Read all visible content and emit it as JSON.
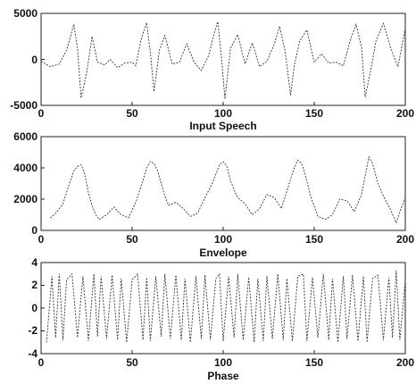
{
  "chart_data": [
    {
      "type": "line",
      "xlabel": "Input Speech",
      "ylabel": "",
      "xlim": [
        0,
        200
      ],
      "ylim": [
        -5000,
        5000
      ],
      "xticks": [
        "0",
        "50",
        "100",
        "150",
        "200"
      ],
      "yticks": [
        "-5000",
        "0",
        "5000"
      ],
      "grid": false,
      "series": [
        {
          "x": [
            0,
            5,
            10,
            14,
            18,
            20,
            22,
            25,
            28,
            31,
            35,
            38,
            42,
            46,
            50,
            52,
            55,
            58,
            60,
            62,
            65,
            68,
            72,
            76,
            80,
            84,
            88,
            92,
            95,
            97,
            99,
            101,
            104,
            108,
            112,
            116,
            120,
            124,
            128,
            131,
            134,
            137,
            139,
            142,
            146,
            150,
            154,
            158,
            162,
            166,
            170,
            173,
            176,
            178,
            181,
            184,
            188,
            192,
            196,
            200
          ],
          "y": [
            -200,
            -800,
            -500,
            1000,
            3800,
            1200,
            -4200,
            -1500,
            2500,
            -300,
            -600,
            0,
            -900,
            -400,
            -300,
            -700,
            2200,
            4000,
            800,
            -3500,
            1000,
            2600,
            -500,
            -300,
            1700,
            -300,
            -1200,
            400,
            2800,
            4100,
            300,
            -4300,
            1200,
            2700,
            -500,
            1800,
            -800,
            -200,
            1600,
            3600,
            900,
            -3900,
            -700,
            2000,
            3200,
            -300,
            600,
            -400,
            -300,
            -700,
            2200,
            3800,
            1300,
            -4100,
            -1200,
            2100,
            3900,
            1200,
            -800,
            3400
          ]
        }
      ]
    },
    {
      "type": "line",
      "xlabel": "Envelope",
      "ylabel": "",
      "xlim": [
        0,
        200
      ],
      "ylim": [
        0,
        6000
      ],
      "xticks": [
        "0",
        "50",
        "100",
        "150",
        "200"
      ],
      "yticks": [
        "0",
        "2000",
        "4000",
        "6000"
      ],
      "grid": false,
      "series": [
        {
          "x": [
            5,
            8,
            12,
            15,
            18,
            20,
            22,
            24,
            26,
            28,
            30,
            32,
            36,
            40,
            44,
            48,
            52,
            56,
            58,
            60,
            62,
            64,
            66,
            68,
            70,
            74,
            78,
            82,
            86,
            90,
            94,
            98,
            100,
            102,
            104,
            106,
            108,
            112,
            116,
            120,
            124,
            128,
            132,
            136,
            139,
            141,
            143,
            145,
            148,
            152,
            156,
            160,
            164,
            168,
            172,
            176,
            178,
            180,
            182,
            185,
            188,
            192,
            195,
            198,
            200
          ],
          "y": [
            800,
            1100,
            1700,
            2800,
            3800,
            4100,
            4200,
            3600,
            2400,
            1600,
            1000,
            700,
            1000,
            1500,
            1000,
            800,
            1800,
            3200,
            4000,
            4400,
            4300,
            3800,
            3000,
            2200,
            1600,
            1800,
            1400,
            900,
            1100,
            2100,
            3000,
            4200,
            4400,
            4100,
            3200,
            2600,
            2100,
            1700,
            1000,
            1400,
            2300,
            2100,
            1400,
            2900,
            4000,
            4500,
            4300,
            3600,
            2200,
            900,
            700,
            1000,
            2000,
            1900,
            1200,
            2300,
            3500,
            4700,
            4300,
            3000,
            2200,
            1300,
            500,
            1500,
            2100
          ]
        }
      ]
    },
    {
      "type": "line",
      "xlabel": "Phase",
      "ylabel": "",
      "xlim": [
        0,
        200
      ],
      "ylim": [
        -4,
        4
      ],
      "xticks": [
        "0",
        "50",
        "100",
        "150",
        "200"
      ],
      "yticks": [
        "-4",
        "-2",
        "0",
        "2",
        "4"
      ],
      "grid": false,
      "series": [
        {
          "x": [
            3,
            6,
            8,
            10,
            12,
            14,
            17,
            20,
            23,
            26,
            29,
            31,
            33,
            36,
            39,
            42,
            44,
            47,
            50,
            53,
            56,
            58,
            60,
            63,
            66,
            68,
            71,
            74,
            77,
            79,
            82,
            85,
            88,
            90,
            93,
            96,
            98,
            100,
            103,
            106,
            108,
            111,
            114,
            117,
            119,
            122,
            124,
            127,
            130,
            133,
            135,
            138,
            141,
            144,
            146,
            149,
            152,
            155,
            158,
            160,
            163,
            166,
            168,
            171,
            174,
            177,
            179,
            182,
            185,
            188,
            191,
            193,
            195,
            197,
            200
          ],
          "y": [
            -3,
            2.8,
            -2.6,
            3,
            -2.8,
            2.5,
            3,
            -2.6,
            2.8,
            -2.9,
            3,
            -2.5,
            2.8,
            -2.7,
            2.9,
            -2.8,
            2.6,
            -3,
            2.5,
            3,
            -2.8,
            2.7,
            -2.9,
            2.8,
            -2.5,
            3,
            -2.7,
            2.9,
            -2.8,
            2.6,
            -3,
            2.8,
            -2.7,
            2.9,
            -2.8,
            2.6,
            3,
            -2.9,
            2.8,
            -2.6,
            3,
            -2.8,
            2.7,
            -3,
            2.6,
            -2.9,
            2.8,
            -2.7,
            3,
            -2.8,
            2.6,
            -2.9,
            2.8,
            3,
            -2.9,
            2.7,
            -2.6,
            3,
            -2.8,
            2.6,
            -3,
            2.8,
            -2.7,
            2.9,
            -2.9,
            2.8,
            -3,
            2.6,
            2.9,
            -2.8,
            2.7,
            -2.6,
            3.3,
            -2.8,
            2.4
          ]
        }
      ]
    }
  ]
}
